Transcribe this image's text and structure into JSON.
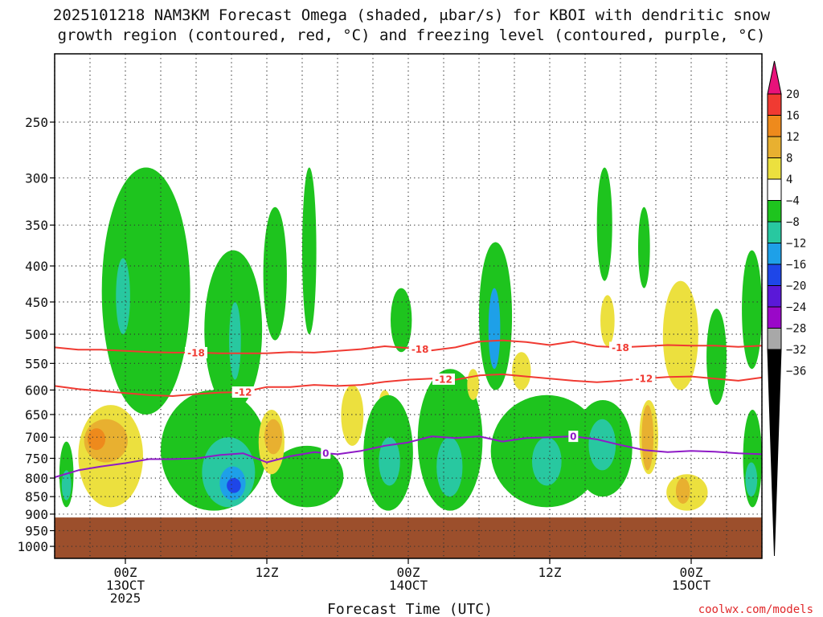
{
  "chart_data": {
    "type": "heatmap",
    "title_lines": [
      "2025101218 NAM3KM Forecast Omega (shaded, μbar/s) for KBOI with dendritic snow",
      "growth region (contoured, red, °C) and freezing level (contoured, purple, °C)"
    ],
    "xlabel": "Forecast Time (UTC)",
    "ylabel": "",
    "watermark": "coolwx.com/models",
    "x_units": "hours since 2025-10-12 18Z",
    "xlim": [
      0,
      60
    ],
    "x_ticks": [
      {
        "hour": 6,
        "lines": [
          "00Z",
          "13OCT",
          "2025"
        ]
      },
      {
        "hour": 18,
        "lines": [
          "12Z"
        ]
      },
      {
        "hour": 30,
        "lines": [
          "00Z",
          "14OCT"
        ]
      },
      {
        "hour": 42,
        "lines": [
          "12Z"
        ]
      },
      {
        "hour": 54,
        "lines": [
          "00Z",
          "15OCT"
        ]
      }
    ],
    "y_units": "hPa (log scale)",
    "ylim": [
      1040,
      200
    ],
    "y_ticks": [
      250,
      300,
      350,
      400,
      450,
      500,
      550,
      600,
      650,
      700,
      750,
      800,
      850,
      900,
      950,
      1000
    ],
    "surface_pressure_hPa": 910,
    "colorbar": {
      "labels": [
        "20",
        "16",
        "12",
        "8",
        "4",
        "−4",
        "−8",
        "−12",
        "−16",
        "−20",
        "−24",
        "−28",
        "−32",
        "−36"
      ],
      "colors": [
        "#e8127a",
        "#f03a32",
        "#ee8a1c",
        "#e8b030",
        "#ece03e",
        "#ffffff",
        "#1ec41e",
        "#28c8a0",
        "#1ea0e8",
        "#1e46e8",
        "#5a18d8",
        "#9a08c8",
        "#a8a8a8",
        "#000000"
      ]
    },
    "omega_regions": [
      {
        "value": -6,
        "color": "#1ec41e",
        "x_range": [
          4.0,
          11.5
        ],
        "p_range": [
          290,
          650
        ]
      },
      {
        "value": -12,
        "color": "#28c8a0",
        "x_range": [
          5.2,
          6.4
        ],
        "p_range": [
          390,
          500
        ]
      },
      {
        "value": -6,
        "color": "#1ec41e",
        "x_range": [
          9.0,
          18.0
        ],
        "p_range": [
          600,
          890
        ]
      },
      {
        "value": -12,
        "color": "#28c8a0",
        "x_range": [
          12.5,
          17.0
        ],
        "p_range": [
          700,
          880
        ]
      },
      {
        "value": -16,
        "color": "#1ea0e8",
        "x_range": [
          14.0,
          16.2
        ],
        "p_range": [
          770,
          860
        ]
      },
      {
        "value": -22,
        "color": "#1e46e8",
        "x_range": [
          14.6,
          15.8
        ],
        "p_range": [
          800,
          840
        ]
      },
      {
        "value": -6,
        "color": "#1ec41e",
        "x_range": [
          12.7,
          17.6
        ],
        "p_range": [
          380,
          640
        ]
      },
      {
        "value": -12,
        "color": "#28c8a0",
        "x_range": [
          14.8,
          15.8
        ],
        "p_range": [
          450,
          580
        ]
      },
      {
        "value": -6,
        "color": "#1ec41e",
        "x_range": [
          17.7,
          19.7
        ],
        "p_range": [
          330,
          510
        ]
      },
      {
        "value": -6,
        "color": "#1ec41e",
        "x_range": [
          21.0,
          22.2
        ],
        "p_range": [
          290,
          500
        ]
      },
      {
        "value": -6,
        "color": "#1ec41e",
        "x_range": [
          18.3,
          24.5
        ],
        "p_range": [
          720,
          880
        ]
      },
      {
        "value": 6,
        "color": "#ece03e",
        "x_range": [
          17.3,
          19.5
        ],
        "p_range": [
          640,
          790
        ]
      },
      {
        "value": 10,
        "color": "#e8b030",
        "x_range": [
          17.8,
          19.3
        ],
        "p_range": [
          660,
          740
        ]
      },
      {
        "value": 6,
        "color": "#ece03e",
        "x_range": [
          24.3,
          26.2
        ],
        "p_range": [
          590,
          720
        ]
      },
      {
        "value": 6,
        "color": "#ece03e",
        "x_range": [
          27.5,
          28.5
        ],
        "p_range": [
          600,
          660
        ]
      },
      {
        "value": -6,
        "color": "#1ec41e",
        "x_range": [
          26.2,
          30.4
        ],
        "p_range": [
          610,
          890
        ]
      },
      {
        "value": -12,
        "color": "#28c8a0",
        "x_range": [
          27.5,
          29.3
        ],
        "p_range": [
          700,
          820
        ]
      },
      {
        "value": -6,
        "color": "#1ec41e",
        "x_range": [
          28.5,
          30.3
        ],
        "p_range": [
          430,
          530
        ]
      },
      {
        "value": -6,
        "color": "#1ec41e",
        "x_range": [
          30.8,
          36.3
        ],
        "p_range": [
          560,
          890
        ]
      },
      {
        "value": -12,
        "color": "#28c8a0",
        "x_range": [
          32.4,
          34.6
        ],
        "p_range": [
          700,
          850
        ]
      },
      {
        "value": -6,
        "color": "#1ec41e",
        "x_range": [
          36.0,
          38.8
        ],
        "p_range": [
          370,
          600
        ]
      },
      {
        "value": -16,
        "color": "#1ea0e8",
        "x_range": [
          36.8,
          37.8
        ],
        "p_range": [
          430,
          560
        ]
      },
      {
        "value": 6,
        "color": "#ece03e",
        "x_range": [
          35.0,
          36.0
        ],
        "p_range": [
          560,
          620
        ]
      },
      {
        "value": -6,
        "color": "#1ec41e",
        "x_range": [
          37.0,
          46.5
        ],
        "p_range": [
          610,
          880
        ]
      },
      {
        "value": -12,
        "color": "#28c8a0",
        "x_range": [
          40.5,
          43.0
        ],
        "p_range": [
          700,
          820
        ]
      },
      {
        "value": 6,
        "color": "#ece03e",
        "x_range": [
          38.8,
          40.4
        ],
        "p_range": [
          530,
          600
        ]
      },
      {
        "value": -6,
        "color": "#1ec41e",
        "x_range": [
          44.0,
          49.0
        ],
        "p_range": [
          620,
          850
        ]
      },
      {
        "value": -12,
        "color": "#28c8a0",
        "x_range": [
          45.3,
          47.6
        ],
        "p_range": [
          660,
          780
        ]
      },
      {
        "value": -6,
        "color": "#1ec41e",
        "x_range": [
          46.0,
          47.3
        ],
        "p_range": [
          290,
          420
        ]
      },
      {
        "value": -6,
        "color": "#1ec41e",
        "x_range": [
          49.5,
          50.5
        ],
        "p_range": [
          330,
          430
        ]
      },
      {
        "value": 6,
        "color": "#ece03e",
        "x_range": [
          46.3,
          47.5
        ],
        "p_range": [
          440,
          520
        ]
      },
      {
        "value": 6,
        "color": "#ece03e",
        "x_range": [
          49.6,
          51.2
        ],
        "p_range": [
          620,
          790
        ]
      },
      {
        "value": 10,
        "color": "#e8b030",
        "x_range": [
          49.8,
          50.8
        ],
        "p_range": [
          630,
          780
        ]
      },
      {
        "value": 6,
        "color": "#ece03e",
        "x_range": [
          51.6,
          54.6
        ],
        "p_range": [
          420,
          600
        ]
      },
      {
        "value": 6,
        "color": "#ece03e",
        "x_range": [
          51.9,
          55.4
        ],
        "p_range": [
          790,
          890
        ]
      },
      {
        "value": 10,
        "color": "#e8b030",
        "x_range": [
          52.7,
          53.9
        ],
        "p_range": [
          800,
          870
        ]
      },
      {
        "value": -6,
        "color": "#1ec41e",
        "x_range": [
          55.3,
          57.0
        ],
        "p_range": [
          460,
          630
        ]
      },
      {
        "value": -6,
        "color": "#1ec41e",
        "x_range": [
          58.3,
          60.0
        ],
        "p_range": [
          380,
          560
        ]
      },
      {
        "value": -6,
        "color": "#1ec41e",
        "x_range": [
          58.4,
          60.0
        ],
        "p_range": [
          640,
          880
        ]
      },
      {
        "value": -12,
        "color": "#28c8a0",
        "x_range": [
          58.6,
          59.6
        ],
        "p_range": [
          760,
          850
        ]
      },
      {
        "value": -6,
        "color": "#1ec41e",
        "x_range": [
          0.4,
          1.6
        ],
        "p_range": [
          710,
          880
        ]
      },
      {
        "value": -12,
        "color": "#28c8a0",
        "x_range": [
          0.6,
          1.4
        ],
        "p_range": [
          780,
          860
        ]
      },
      {
        "value": -6,
        "color": "#1ec41e",
        "x_range": [
          2.7,
          3.9
        ],
        "p_range": [
          800,
          840
        ]
      },
      {
        "value": 6,
        "color": "#ece03e",
        "x_range": [
          2.0,
          7.5
        ],
        "p_range": [
          630,
          880
        ]
      },
      {
        "value": 10,
        "color": "#e8b030",
        "x_range": [
          2.5,
          6.2
        ],
        "p_range": [
          660,
          760
        ]
      },
      {
        "value": 14,
        "color": "#ee8a1c",
        "x_range": [
          2.8,
          4.3
        ],
        "p_range": [
          680,
          730
        ]
      }
    ],
    "contours": [
      {
        "label": "-18",
        "color": "#f03a32",
        "label_at_hours": [
          12,
          31,
          48
        ],
        "x": [
          0,
          2,
          4,
          6,
          8,
          10,
          12,
          14,
          16,
          18,
          20,
          22,
          24,
          26,
          28,
          30,
          32,
          34,
          36,
          38,
          40,
          42,
          44,
          46,
          48,
          50,
          52,
          54,
          56,
          58,
          60
        ],
        "p": [
          522,
          526,
          526,
          528,
          530,
          531,
          531,
          532,
          532,
          532,
          530,
          531,
          528,
          525,
          520,
          523,
          527,
          522,
          512,
          510,
          513,
          518,
          512,
          520,
          522,
          520,
          518,
          519,
          519,
          521,
          519
        ]
      },
      {
        "label": "-12",
        "color": "#f03a32",
        "label_at_hours": [
          16,
          33,
          50
        ],
        "x": [
          0,
          2,
          4,
          6,
          8,
          10,
          12,
          14,
          16,
          18,
          20,
          22,
          24,
          26,
          28,
          30,
          32,
          34,
          36,
          38,
          40,
          42,
          44,
          46,
          48,
          50,
          52,
          54,
          56,
          58,
          60
        ],
        "p": [
          592,
          598,
          602,
          606,
          610,
          612,
          608,
          605,
          604,
          594,
          594,
          590,
          592,
          590,
          584,
          580,
          578,
          580,
          572,
          570,
          574,
          578,
          582,
          585,
          582,
          578,
          575,
          574,
          578,
          582,
          576
        ]
      },
      {
        "label": "0",
        "color": "#8e1ac6",
        "label_at_hours": [
          23,
          44
        ],
        "x": [
          0,
          2,
          4,
          6,
          8,
          10,
          12,
          14,
          16,
          18,
          20,
          22,
          24,
          26,
          28,
          30,
          32,
          34,
          36,
          38,
          40,
          42,
          44,
          46,
          48,
          50,
          52,
          54,
          56,
          58,
          60
        ],
        "p": [
          798,
          780,
          770,
          762,
          752,
          752,
          750,
          742,
          738,
          760,
          745,
          735,
          740,
          732,
          720,
          712,
          698,
          702,
          698,
          710,
          702,
          700,
          698,
          705,
          718,
          730,
          735,
          732,
          734,
          738,
          740
        ]
      }
    ]
  }
}
